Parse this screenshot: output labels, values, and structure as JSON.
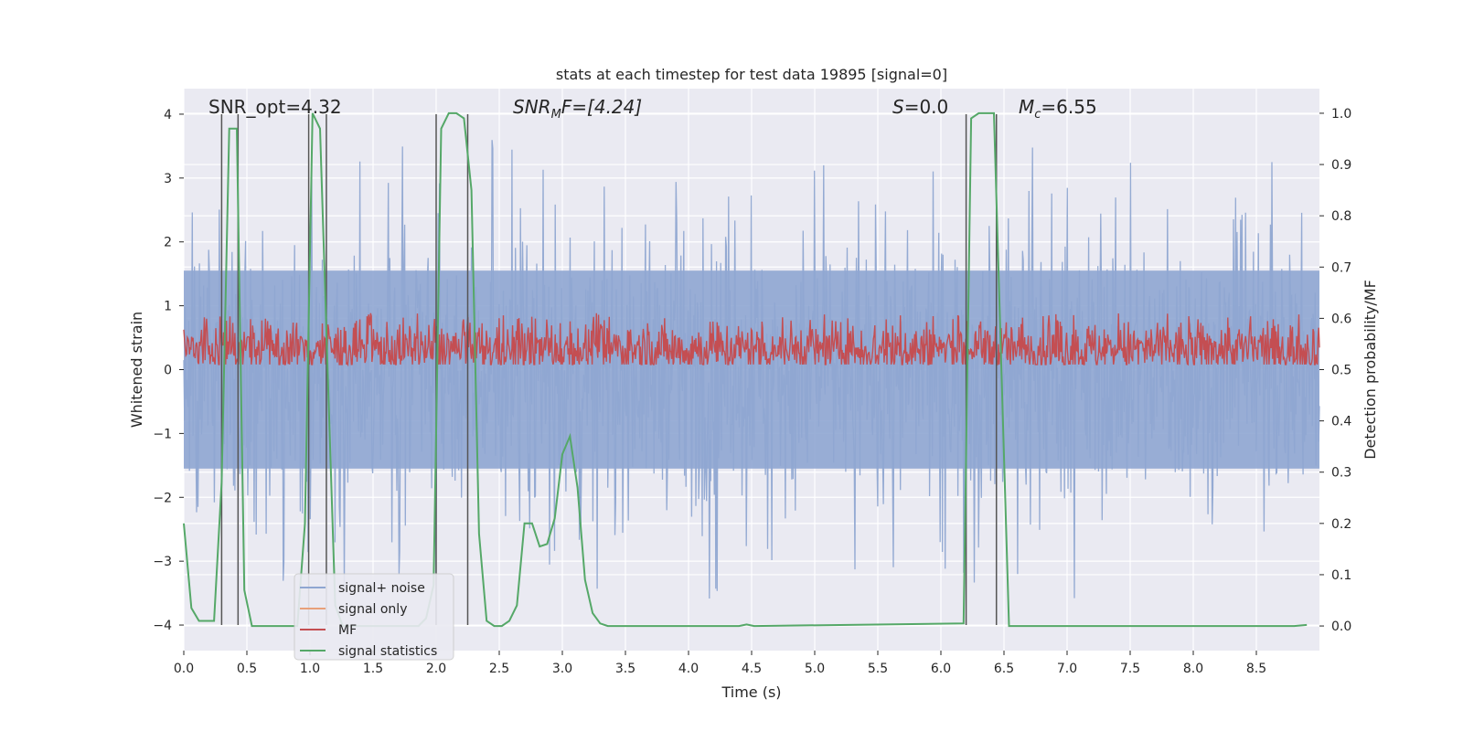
{
  "chart_data": {
    "type": "line",
    "title": "stats at each timestep for test data 19895 [signal=0]",
    "xlabel": "Time (s)",
    "ylabel": "Whitened strain",
    "ylabel_right": "Detection probability/MF",
    "xlim": [
      0.0,
      9.0
    ],
    "ylim": [
      -4.4,
      4.4
    ],
    "ylim_right": [
      -0.048,
      1.048
    ],
    "x_ticks": [
      0.0,
      0.5,
      1.0,
      1.5,
      2.0,
      2.5,
      3.0,
      3.5,
      4.0,
      4.5,
      5.0,
      5.5,
      6.0,
      6.5,
      7.0,
      7.5,
      8.0,
      8.5
    ],
    "x_tick_labels": [
      "0.0",
      "0.5",
      "1.0",
      "1.5",
      "2.0",
      "2.5",
      "3.0",
      "3.5",
      "4.0",
      "4.5",
      "5.0",
      "5.5",
      "6.0",
      "6.5",
      "7.0",
      "7.5",
      "8.0",
      "8.5"
    ],
    "y_ticks": [
      -4,
      -3,
      -2,
      -1,
      0,
      1,
      2,
      3,
      4
    ],
    "y_tick_labels": [
      "−4",
      "−3",
      "−2",
      "−1",
      "0",
      "1",
      "2",
      "3",
      "4"
    ],
    "y_ticks_right": [
      0.0,
      0.1,
      0.2,
      0.3,
      0.4,
      0.5,
      0.6,
      0.7,
      0.8,
      0.9,
      1.0
    ],
    "y_tick_labels_right": [
      "0.0",
      "0.1",
      "0.2",
      "0.3",
      "0.4",
      "0.5",
      "0.6",
      "0.7",
      "0.8",
      "0.9",
      "1.0"
    ],
    "grid": true,
    "legend_position": "lower-left",
    "annotations": {
      "snr_opt": "SNR_opt=4.32",
      "snr_mf_prefix": "SNR",
      "snr_mf_sub": "M",
      "snr_mf_suffix": "F=[4.24]",
      "s_prefix": "S",
      "s_suffix": "=0.0",
      "mc_prefix": "M",
      "mc_sub": "c",
      "mc_suffix": "=6.55"
    },
    "series": [
      {
        "name": "signal+ noise",
        "color": "#8fa6d1",
        "axis": "left",
        "kind": "noise",
        "envelope_sigma": 0.8,
        "peak_range": [
          -4.0,
          3.6
        ]
      },
      {
        "name": "signal only",
        "color": "#e8a07a",
        "axis": "left",
        "kind": "flat",
        "value": 0.0
      },
      {
        "name": "MF",
        "color": "#c44e52",
        "axis": "right",
        "kind": "noise",
        "center": 0.54,
        "spread": 0.03,
        "peak_range": [
          0.51,
          0.61
        ]
      },
      {
        "name": "signal statistics",
        "color": "#55a868",
        "axis": "right",
        "kind": "line",
        "x": [
          0.0,
          0.06,
          0.12,
          0.18,
          0.24,
          0.3,
          0.36,
          0.42,
          0.48,
          0.54,
          0.6,
          0.9,
          0.96,
          1.02,
          1.08,
          1.14,
          1.2,
          1.26,
          1.32,
          1.38,
          1.86,
          1.92,
          1.98,
          2.04,
          2.1,
          2.16,
          2.22,
          2.28,
          2.34,
          2.4,
          2.46,
          2.52,
          2.58,
          2.64,
          2.7,
          2.76,
          2.82,
          2.88,
          2.94,
          3.0,
          3.06,
          3.12,
          3.18,
          3.24,
          3.3,
          3.36,
          3.42,
          3.48,
          3.54,
          4.4,
          4.46,
          4.52,
          6.18,
          6.24,
          6.3,
          6.36,
          6.42,
          6.48,
          6.54,
          6.6,
          8.8,
          8.9
        ],
        "y": [
          0.2,
          0.035,
          0.01,
          0.01,
          0.01,
          0.28,
          0.97,
          0.97,
          0.07,
          0.0,
          0.0,
          0.0,
          0.2,
          1.0,
          0.97,
          0.5,
          0.04,
          0.0,
          0.0,
          0.0,
          0.0,
          0.015,
          0.08,
          0.97,
          1.0,
          1.0,
          0.99,
          0.85,
          0.18,
          0.01,
          0.0,
          0.0,
          0.01,
          0.04,
          0.2,
          0.2,
          0.155,
          0.16,
          0.21,
          0.335,
          0.37,
          0.27,
          0.09,
          0.025,
          0.005,
          0.0,
          0.0,
          0.0,
          0.0,
          0.0,
          0.003,
          0.0,
          0.005,
          0.99,
          1.0,
          1.0,
          1.0,
          0.5,
          0.0,
          0.0,
          0.0,
          0.002
        ]
      }
    ],
    "vertical_markers": [
      0.3,
      0.43,
      0.99,
      1.13,
      2.0,
      2.25,
      6.2,
      6.44
    ]
  }
}
